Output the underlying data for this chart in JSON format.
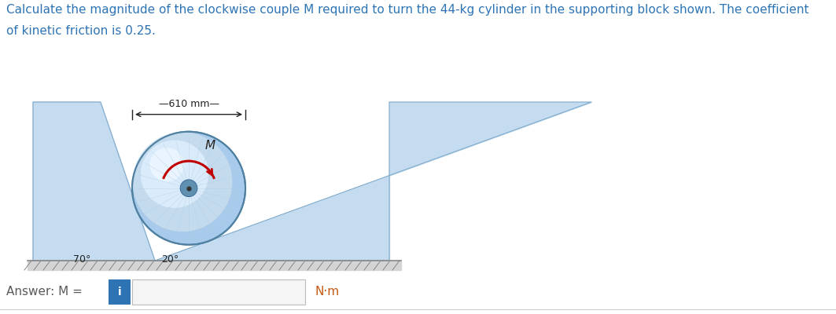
{
  "title_line1": "Calculate the magnitude of the clockwise couple M required to turn the 44-kg cylinder in the supporting block shown. The coefficient",
  "title_line2": "of kinetic friction is 0.25.",
  "title_color": "#2E74B5",
  "title_fontsize": 11.0,
  "answer_label": "Answer: M = ",
  "answer_color": "#595959",
  "nm_text": "N·m",
  "nm_color": "#C55A11",
  "dim_text": "—610 mm—",
  "angle1_text": "70°",
  "angle2_text": "20°",
  "M_label": "M",
  "block_fill": "#C5DCF0",
  "block_edge": "#7FAACC",
  "ground_fill": "#D4D4D4",
  "ground_hatch_color": "#AAAAAA",
  "cyl_outer_color": "#B8D4EC",
  "cyl_mid_color": "#D8ECFA",
  "cyl_highlight": "#EEF6FF",
  "cyl_edge_color": "#7FAACC",
  "cyl_shine_color": "#FFFFFF",
  "arrow_color": "#C00000",
  "dim_color": "#222222",
  "info_btn_color": "#2E74B5",
  "bg_color": "#FFFFFF",
  "fig_width": 10.63,
  "fig_height": 4.0,
  "dpi": 100
}
